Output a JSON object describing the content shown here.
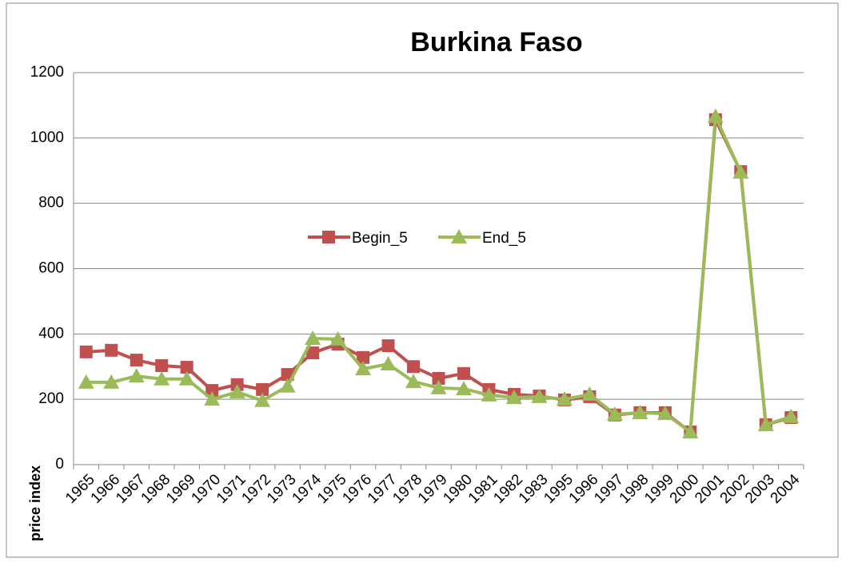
{
  "chart_data": {
    "type": "line",
    "title": "Burkina Faso",
    "y_label": "price index",
    "categories": [
      "1965",
      "1966",
      "1967",
      "1968",
      "1969",
      "1970",
      "1971",
      "1972",
      "1973",
      "1974",
      "1975",
      "1976",
      "1977",
      "1978",
      "1979",
      "1980",
      "1981",
      "1982",
      "1983",
      "1995",
      "1996",
      "1997",
      "1998",
      "1999",
      "2000",
      "2001",
      "2002",
      "2003",
      "2004"
    ],
    "series": [
      {
        "name": "Begin_5",
        "color": "#c0504d",
        "marker": "square",
        "values": [
          345,
          350,
          320,
          303,
          298,
          227,
          245,
          230,
          276,
          342,
          369,
          328,
          364,
          300,
          264,
          279,
          230,
          215,
          210,
          198,
          208,
          152,
          159,
          159,
          100,
          1056,
          897,
          122,
          144
        ]
      },
      {
        "name": "End_5",
        "color": "#9bbb59",
        "marker": "triangle",
        "values": [
          252,
          252,
          271,
          262,
          262,
          200,
          222,
          196,
          240,
          386,
          384,
          293,
          308,
          254,
          235,
          232,
          213,
          205,
          208,
          200,
          215,
          154,
          159,
          156,
          100,
          1066,
          895,
          122,
          147
        ]
      }
    ],
    "ylim": [
      0,
      1200
    ],
    "yticks": [
      0,
      200,
      400,
      600,
      800,
      1000,
      1200
    ],
    "grid": true,
    "legend": "center"
  }
}
